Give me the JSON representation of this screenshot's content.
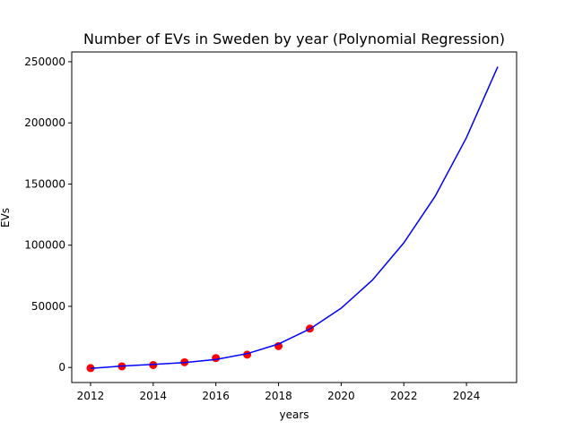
{
  "chart_data": {
    "type": "scatter",
    "title": "Number of EVs in Sweden by year (Polynomial Regression)",
    "xlabel": "years",
    "ylabel": "EVs",
    "xlim": [
      2011.4,
      2025.6
    ],
    "ylim": [
      -12300,
      258000
    ],
    "x_ticks": [
      2012,
      2014,
      2016,
      2018,
      2020,
      2022,
      2024
    ],
    "x_tick_labels": [
      "2012",
      "2014",
      "2016",
      "2018",
      "2020",
      "2022",
      "2024"
    ],
    "y_ticks": [
      0,
      50000,
      100000,
      150000,
      200000,
      250000
    ],
    "y_tick_labels": [
      "0",
      "50000",
      "100000",
      "150000",
      "200000",
      "250000"
    ],
    "grid": false,
    "legend": "none",
    "series": [
      {
        "kind": "scatter",
        "color": "#ff0000",
        "x": [
          2012,
          2013,
          2014,
          2015,
          2016,
          2017,
          2018,
          2019
        ],
        "y": [
          -500,
          900,
          2000,
          4300,
          7700,
          10500,
          17500,
          31800
        ]
      },
      {
        "kind": "line",
        "color": "#0000ff",
        "x": [
          2012,
          2013,
          2014,
          2015,
          2016,
          2017,
          2018,
          2019,
          2020,
          2021,
          2022,
          2023,
          2024,
          2025
        ],
        "y": [
          -800,
          1200,
          2600,
          4000,
          6600,
          11300,
          19200,
          31500,
          48500,
          71500,
          102000,
          140000,
          188000,
          246000
        ]
      }
    ]
  }
}
